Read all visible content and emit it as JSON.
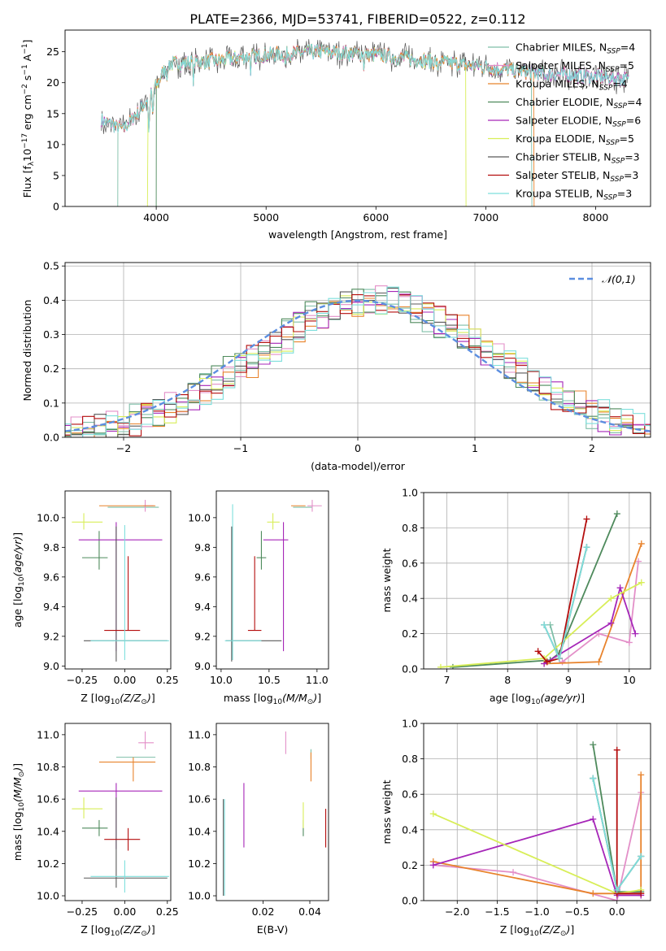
{
  "title": "PLATE=2366, MJD=53741, FIBERID=0522, z=0.112",
  "palette": {
    "Chabrier MILES": "#7fbfa8",
    "Salpeter MILES": "#e38fc8",
    "Kroupa MILES": "#e8832c",
    "Chabrier ELODIE": "#4e8a5c",
    "Salpeter ELODIE": "#a626b8",
    "Kroupa ELODIE": "#d8ee58",
    "Chabrier STELIB": "#595959",
    "Salpeter STELIB": "#b40d0d",
    "Kroupa STELIB": "#7edfdc",
    "gaussian": "#5b8ee0"
  },
  "chart_data": [
    {
      "id": "spectrum",
      "type": "line",
      "xlabel": "wavelength [Angstrom, rest frame]",
      "ylabel": "Flux [f_λ10^-17 erg cm^-2 s^-1 A^-1]",
      "xlim": [
        3170,
        8500
      ],
      "ylim": [
        0,
        28.5
      ],
      "xticks": [
        4000,
        5000,
        6000,
        7000,
        8000
      ],
      "yticks": [
        0,
        5,
        10,
        15,
        20,
        25
      ],
      "legend_position": "upper right",
      "legend": [
        "Chabrier MILES, N_SSP=4",
        "Salpeter MILES, N_SSP=5",
        "Kroupa MILES, N_SSP=4",
        "Chabrier ELODIE, N_SSP=4",
        "Salpeter ELODIE, N_SSP=6",
        "Kroupa ELODIE, N_SSP=5",
        "Chabrier STELIB, N_SSP=3",
        "Salpeter STELIB, N_SSP=3",
        "Kroupa STELIB, N_SSP=3"
      ],
      "continuum": {
        "x": [
          3500,
          3700,
          3850,
          4000,
          4100,
          4500,
          5000,
          5500,
          6000,
          6500,
          7000,
          7500,
          8000,
          8300
        ],
        "y": [
          14,
          12.5,
          15.5,
          19.5,
          23,
          23.5,
          24.5,
          25,
          24.5,
          23.5,
          22.5,
          21.5,
          21,
          20.5
        ]
      },
      "model_ranges": [
        [
          3650,
          7420
        ],
        [
          3540,
          8300
        ],
        [
          3530,
          7440
        ],
        [
          4000,
          8300
        ],
        [
          3500,
          8300
        ],
        [
          3920,
          6820
        ],
        [
          3500,
          8300
        ],
        [
          3500,
          8300
        ],
        [
          3500,
          8300
        ]
      ]
    },
    {
      "id": "residuals",
      "type": "histogram",
      "xlabel": "(data-model)/error",
      "ylabel": "Normed distribution",
      "xlim": [
        -2.5,
        2.5
      ],
      "ylim": [
        0,
        0.51
      ],
      "xticks": [
        -2,
        -1,
        0,
        1,
        2
      ],
      "yticks": [
        0.0,
        0.1,
        0.2,
        0.3,
        0.4,
        0.5
      ],
      "grid": true,
      "bin_width": 0.1,
      "gaussian_label": "𝒩(0,1)",
      "legend_position": "upper right"
    },
    {
      "id": "age-vs-Z",
      "type": "errorbar",
      "xlabel": "Z [log10(Z/Z☉)]",
      "ylabel": "age [log10(age/yr)]",
      "xlim": [
        -0.35,
        0.27
      ],
      "ylim": [
        8.98,
        10.18
      ],
      "xticks": [
        -0.25,
        0.0,
        0.25
      ],
      "yticks": [
        9.0,
        9.2,
        9.4,
        9.6,
        9.8,
        10.0
      ],
      "points": [
        {
          "m": "Chabrier MILES",
          "x": 0.05,
          "y": 10.07,
          "xerr": [
            0.15,
            0.15
          ],
          "yerr": [
            0.0,
            0.0
          ]
        },
        {
          "m": "Salpeter MILES",
          "x": 0.12,
          "y": 10.08,
          "xerr": [
            0.01,
            0.05
          ],
          "yerr": [
            0.04,
            0.04
          ]
        },
        {
          "m": "Kroupa MILES",
          "x": 0.05,
          "y": 10.08,
          "xerr": [
            0.2,
            0.13
          ],
          "yerr": [
            0.0,
            0.0
          ]
        },
        {
          "m": "Chabrier ELODIE",
          "x": -0.15,
          "y": 9.73,
          "xerr": [
            0.1,
            0.05
          ],
          "yerr": [
            0.08,
            0.18
          ]
        },
        {
          "m": "Salpeter ELODIE",
          "x": -0.05,
          "y": 9.85,
          "xerr": [
            0.22,
            0.27
          ],
          "yerr": [
            0.75,
            0.12
          ]
        },
        {
          "m": "Kroupa ELODIE",
          "x": -0.24,
          "y": 9.97,
          "xerr": [
            0.07,
            0.11
          ],
          "yerr": [
            0.05,
            0.06
          ]
        },
        {
          "m": "Chabrier STELIB",
          "x": -0.05,
          "y": 9.17,
          "xerr": [
            0.19,
            0.3
          ],
          "yerr": [
            0.14,
            0.77
          ]
        },
        {
          "m": "Salpeter STELIB",
          "x": 0.02,
          "y": 9.24,
          "xerr": [
            0.14,
            0.07
          ],
          "yerr": [
            0.0,
            0.5
          ]
        },
        {
          "m": "Kroupa STELIB",
          "x": 0.0,
          "y": 9.17,
          "xerr": [
            0.2,
            0.26
          ],
          "yerr": [
            0.13,
            0.78
          ]
        }
      ]
    },
    {
      "id": "age-vs-mass",
      "type": "errorbar",
      "xlabel": "mass [log10(M/M☉)]",
      "ylabel": "",
      "xlim": [
        9.95,
        11.12
      ],
      "ylim": [
        8.98,
        10.18
      ],
      "xticks": [
        10.0,
        10.5,
        11.0
      ],
      "yticks": [
        9.0,
        9.2,
        9.4,
        9.6,
        9.8,
        10.0
      ],
      "points": [
        {
          "m": "Chabrier MILES",
          "x": 10.85,
          "y": 10.07,
          "xerr": [
            0.1,
            0.1
          ],
          "yerr": [
            0.0,
            0.0
          ]
        },
        {
          "m": "Salpeter MILES",
          "x": 10.95,
          "y": 10.08,
          "xerr": [
            0.05,
            0.1
          ],
          "yerr": [
            0.04,
            0.04
          ]
        },
        {
          "m": "Kroupa MILES",
          "x": 10.85,
          "y": 10.08,
          "xerr": [
            0.12,
            0.03
          ],
          "yerr": [
            0.0,
            0.0
          ]
        },
        {
          "m": "Chabrier ELODIE",
          "x": 10.42,
          "y": 9.73,
          "xerr": [
            0.05,
            0.05
          ],
          "yerr": [
            0.08,
            0.18
          ]
        },
        {
          "m": "Salpeter ELODIE",
          "x": 10.65,
          "y": 9.85,
          "xerr": [
            0.21,
            0.05
          ],
          "yerr": [
            0.75,
            0.12
          ]
        },
        {
          "m": "Kroupa ELODIE",
          "x": 10.54,
          "y": 9.97,
          "xerr": [
            0.06,
            0.07
          ],
          "yerr": [
            0.05,
            0.06
          ]
        },
        {
          "m": "Chabrier STELIB",
          "x": 10.11,
          "y": 9.17,
          "xerr": [
            0.06,
            0.52
          ],
          "yerr": [
            0.14,
            0.77
          ]
        },
        {
          "m": "Salpeter STELIB",
          "x": 10.35,
          "y": 9.24,
          "xerr": [
            0.07,
            0.07
          ],
          "yerr": [
            0.0,
            0.5
          ]
        },
        {
          "m": "Kroupa STELIB",
          "x": 10.12,
          "y": 9.17,
          "xerr": [
            0.08,
            0.3
          ],
          "yerr": [
            0.13,
            0.92
          ]
        }
      ]
    },
    {
      "id": "weight-vs-age",
      "type": "line",
      "xlabel": "age [log10(age/yr)]",
      "ylabel": "mass weight",
      "xlim": [
        6.62,
        10.35
      ],
      "ylim": [
        0,
        1.0
      ],
      "xticks": [
        7,
        8,
        9,
        10
      ],
      "yticks": [
        0.0,
        0.2,
        0.4,
        0.6,
        0.8,
        1.0
      ],
      "grid": true,
      "series": [
        {
          "m": "Chabrier MILES",
          "x": [
            8.7,
            8.85,
            9.3
          ],
          "y": [
            0.25,
            0.06,
            0.69
          ]
        },
        {
          "m": "Salpeter MILES",
          "x": [
            8.9,
            9.5,
            10.0,
            10.15
          ],
          "y": [
            0.04,
            0.2,
            0.15,
            0.61
          ]
        },
        {
          "m": "Kroupa MILES",
          "x": [
            8.6,
            9.5,
            10.2
          ],
          "y": [
            0.03,
            0.04,
            0.71
          ]
        },
        {
          "m": "Chabrier ELODIE",
          "x": [
            7.1,
            8.7,
            8.85,
            9.8
          ],
          "y": [
            0.01,
            0.05,
            0.09,
            0.88
          ]
        },
        {
          "m": "Salpeter ELODIE",
          "x": [
            8.6,
            9.7,
            9.85,
            10.1
          ],
          "y": [
            0.03,
            0.26,
            0.46,
            0.2
          ]
        },
        {
          "m": "Kroupa ELODIE",
          "x": [
            6.9,
            8.6,
            9.7,
            10.2
          ],
          "y": [
            0.01,
            0.06,
            0.4,
            0.49
          ]
        },
        {
          "m": "Chabrier STELIB",
          "x": [
            8.6,
            8.85,
            9.3
          ],
          "y": [
            0.25,
            0.06,
            0.69
          ]
        },
        {
          "m": "Salpeter STELIB",
          "x": [
            8.5,
            8.65,
            8.85,
            9.3
          ],
          "y": [
            0.1,
            0.04,
            0.06,
            0.85
          ]
        },
        {
          "m": "Kroupa STELIB",
          "x": [
            8.6,
            8.85,
            9.3
          ],
          "y": [
            0.25,
            0.06,
            0.69
          ]
        }
      ]
    },
    {
      "id": "mass-vs-Z",
      "type": "errorbar",
      "xlabel": "Z [log10(Z/Z☉)]",
      "ylabel": "mass [log10(M/M☉)]",
      "xlim": [
        -0.35,
        0.27
      ],
      "ylim": [
        9.97,
        11.07
      ],
      "xticks": [
        -0.25,
        0.0,
        0.25
      ],
      "yticks": [
        10.0,
        10.2,
        10.4,
        10.6,
        10.8,
        11.0
      ],
      "points": [
        {
          "m": "Chabrier MILES",
          "x": 0.05,
          "y": 10.86,
          "xerr": [
            0.1,
            0.13
          ],
          "yerr": [
            0.0,
            0.0
          ]
        },
        {
          "m": "Salpeter MILES",
          "x": 0.12,
          "y": 10.95,
          "xerr": [
            0.04,
            0.05
          ],
          "yerr": [
            0.04,
            0.07
          ]
        },
        {
          "m": "Kroupa MILES",
          "x": 0.05,
          "y": 10.83,
          "xerr": [
            0.2,
            0.13
          ],
          "yerr": [
            0.12,
            0.03
          ]
        },
        {
          "m": "Chabrier ELODIE",
          "x": -0.15,
          "y": 10.42,
          "xerr": [
            0.1,
            0.05
          ],
          "yerr": [
            0.05,
            0.05
          ]
        },
        {
          "m": "Salpeter ELODIE",
          "x": -0.05,
          "y": 10.65,
          "xerr": [
            0.22,
            0.27
          ],
          "yerr": [
            0.36,
            0.05
          ]
        },
        {
          "m": "Kroupa ELODIE",
          "x": -0.24,
          "y": 10.54,
          "xerr": [
            0.07,
            0.11
          ],
          "yerr": [
            0.06,
            0.07
          ]
        },
        {
          "m": "Chabrier STELIB",
          "x": -0.05,
          "y": 10.11,
          "xerr": [
            0.19,
            0.3
          ],
          "yerr": [
            0.06,
            0.5
          ]
        },
        {
          "m": "Salpeter STELIB",
          "x": 0.02,
          "y": 10.35,
          "xerr": [
            0.14,
            0.07
          ],
          "yerr": [
            0.07,
            0.07
          ]
        },
        {
          "m": "Kroupa STELIB",
          "x": 0.0,
          "y": 10.12,
          "xerr": [
            0.2,
            0.26
          ],
          "yerr": [
            0.1,
            0.1
          ]
        }
      ]
    },
    {
      "id": "mass-vs-EBV",
      "type": "errorbar",
      "xlabel": "E(B-V)",
      "ylabel": "",
      "xlim": [
        0.0,
        0.048
      ],
      "ylim": [
        9.97,
        11.07
      ],
      "xticks": [
        0.02,
        0.04
      ],
      "yticks": [
        10.0,
        10.2,
        10.4,
        10.6,
        10.8,
        11.0
      ],
      "points": [
        {
          "m": "Chabrier MILES",
          "x": 0.0405,
          "y": 10.88,
          "xerr": [
            0,
            0
          ],
          "yerr": [
            0.03,
            0.03
          ]
        },
        {
          "m": "Salpeter MILES",
          "x": 0.0297,
          "y": 10.95,
          "xerr": [
            0,
            0
          ],
          "yerr": [
            0.07,
            0.07
          ]
        },
        {
          "m": "Kroupa MILES",
          "x": 0.0405,
          "y": 10.8,
          "xerr": [
            0,
            0
          ],
          "yerr": [
            0.09,
            0.09
          ]
        },
        {
          "m": "Chabrier ELODIE",
          "x": 0.0372,
          "y": 10.42,
          "xerr": [
            0,
            0
          ],
          "yerr": [
            0.05,
            0.05
          ]
        },
        {
          "m": "Salpeter ELODIE",
          "x": 0.0118,
          "y": 10.5,
          "xerr": [
            0,
            0
          ],
          "yerr": [
            0.2,
            0.2
          ]
        },
        {
          "m": "Kroupa ELODIE",
          "x": 0.0372,
          "y": 10.5,
          "xerr": [
            0,
            0
          ],
          "yerr": [
            0.08,
            0.08
          ]
        },
        {
          "m": "Chabrier STELIB",
          "x": 0.003,
          "y": 10.3,
          "xerr": [
            0,
            0
          ],
          "yerr": [
            0.3,
            0.3
          ]
        },
        {
          "m": "Salpeter STELIB",
          "x": 0.0468,
          "y": 10.42,
          "xerr": [
            0,
            0
          ],
          "yerr": [
            0.12,
            0.12
          ]
        },
        {
          "m": "Kroupa STELIB",
          "x": 0.0035,
          "y": 10.3,
          "xerr": [
            0,
            0
          ],
          "yerr": [
            0.3,
            0.3
          ]
        }
      ]
    },
    {
      "id": "weight-vs-Z",
      "type": "line",
      "xlabel": "Z [log10(Z/Z☉)]",
      "ylabel": "mass weight",
      "xlim": [
        -2.42,
        0.42
      ],
      "ylim": [
        0,
        1.0
      ],
      "xticks": [
        -2.0,
        -1.5,
        -1.0,
        -0.5,
        0.0
      ],
      "yticks": [
        0.0,
        0.2,
        0.4,
        0.6,
        0.8,
        1.0
      ],
      "grid": true,
      "series": [
        {
          "m": "Chabrier MILES",
          "x": [
            0.3,
            0.0,
            -0.3
          ],
          "y": [
            0.25,
            0.06,
            0.69
          ]
        },
        {
          "m": "Salpeter MILES",
          "x": [
            -2.3,
            -1.3,
            0.0,
            0.3
          ],
          "y": [
            0.2,
            0.16,
            0.0,
            0.61
          ]
        },
        {
          "m": "Kroupa MILES",
          "x": [
            -2.3,
            -0.3,
            0.3,
            0.3
          ],
          "y": [
            0.22,
            0.04,
            0.04,
            0.71
          ]
        },
        {
          "m": "Chabrier ELODIE",
          "x": [
            -0.3,
            0.0,
            0.3
          ],
          "y": [
            0.88,
            0.05,
            0.05
          ]
        },
        {
          "m": "Salpeter ELODIE",
          "x": [
            -2.3,
            -0.3,
            0.0,
            0.3
          ],
          "y": [
            0.2,
            0.46,
            0.03,
            0.03
          ]
        },
        {
          "m": "Kroupa ELODIE",
          "x": [
            -2.3,
            0.0,
            0.3
          ],
          "y": [
            0.49,
            0.04,
            0.06
          ]
        },
        {
          "m": "Chabrier STELIB",
          "x": [
            -0.3,
            0.0,
            0.3
          ],
          "y": [
            0.69,
            0.06,
            0.25
          ]
        },
        {
          "m": "Salpeter STELIB",
          "x": [
            0.0,
            0.0,
            0.3
          ],
          "y": [
            0.85,
            0.04,
            0.04
          ]
        },
        {
          "m": "Kroupa STELIB",
          "x": [
            -0.3,
            0.0,
            0.3
          ],
          "y": [
            0.69,
            0.06,
            0.25
          ]
        }
      ]
    }
  ]
}
